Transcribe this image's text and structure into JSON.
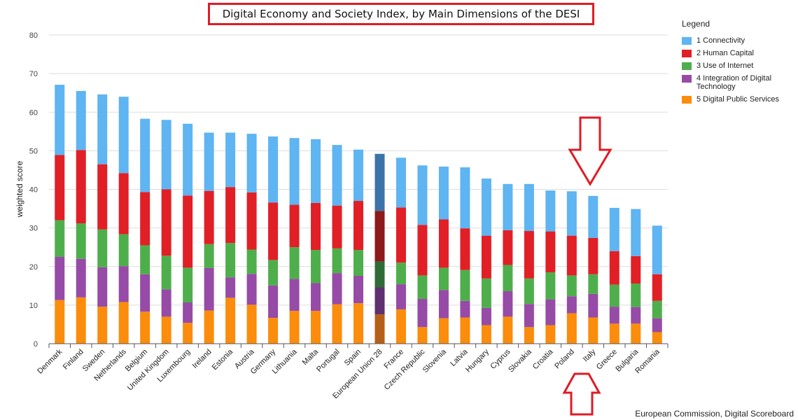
{
  "title": "Digital Economy and Society Index, by Main Dimensions of the DESI",
  "credit": "European Commission, Digital Scoreboard",
  "legend_title": "Legend",
  "colors": {
    "connectivity": "#5fb4f2",
    "human_capital": "#e11f26",
    "use_of_internet": "#4fae4c",
    "integration": "#964ba6",
    "public_services": "#fb8c0c",
    "highlight_bar": [
      "#3d74a8",
      "#8c1a1a",
      "#2f6b36",
      "#5e3070",
      "#b56018"
    ],
    "annotation": "#e01b24"
  },
  "annotation_icons": [
    "arrow-down-icon",
    "arrow-up-icon"
  ],
  "chart_data": {
    "type": "bar",
    "stacked": true,
    "ylabel": "weighted score",
    "xlabel": "",
    "ylim": [
      0,
      80
    ],
    "yticks": [
      0,
      10,
      20,
      30,
      40,
      50,
      60,
      70,
      80
    ],
    "grid": true,
    "legend_position": "right",
    "highlight_category": "European Union 28",
    "categories": [
      "Denmark",
      "Finland",
      "Sweden",
      "Netherlands",
      "Belgium",
      "United Kingdom",
      "Luxembourg",
      "Ireland",
      "Estonia",
      "Austria",
      "Germany",
      "Lithuania",
      "Malta",
      "Portugal",
      "Spain",
      "European Union 28",
      "France",
      "Czech Republic",
      "Slovenia",
      "Latvia",
      "Hungary",
      "Cyprus",
      "Slovakia",
      "Croatia",
      "Poland",
      "Italy",
      "Greece",
      "Bulgaria",
      "Romania"
    ],
    "series": [
      {
        "name": "5 Digital Public Services",
        "values": [
          11.3,
          12.0,
          9.6,
          10.8,
          8.3,
          7.0,
          5.4,
          8.6,
          11.9,
          10.1,
          6.7,
          8.5,
          8.5,
          10.2,
          10.5,
          7.6,
          8.9,
          4.3,
          6.6,
          6.8,
          4.8,
          7.0,
          4.3,
          4.8,
          7.9,
          6.8,
          5.2,
          5.2,
          3.0
        ]
      },
      {
        "name": "4 Integration of Digital Technology",
        "values": [
          11.2,
          10.0,
          10.2,
          9.3,
          9.7,
          7.1,
          5.3,
          11.0,
          5.3,
          8.0,
          8.4,
          8.3,
          7.2,
          8.1,
          7.1,
          7.0,
          6.5,
          7.3,
          7.3,
          4.3,
          4.5,
          6.6,
          6.0,
          6.7,
          4.4,
          6.1,
          4.4,
          4.3,
          3.6
        ]
      },
      {
        "name": "3 Use of Internet",
        "values": [
          9.5,
          9.2,
          9.8,
          8.3,
          7.5,
          8.7,
          9.0,
          6.2,
          8.9,
          6.3,
          6.6,
          8.2,
          8.6,
          6.4,
          6.7,
          6.7,
          5.6,
          6.1,
          5.8,
          8.0,
          7.6,
          6.8,
          6.6,
          7.0,
          5.4,
          5.1,
          5.7,
          6.1,
          4.5
        ]
      },
      {
        "name": "2 Human Capital",
        "values": [
          16.9,
          19.0,
          16.9,
          15.8,
          13.8,
          17.2,
          18.7,
          13.8,
          14.5,
          14.8,
          14.9,
          11.0,
          12.2,
          11.1,
          12.7,
          13.1,
          14.3,
          13.1,
          12.5,
          10.8,
          11.1,
          9.0,
          12.3,
          10.6,
          10.3,
          9.4,
          8.7,
          7.1,
          6.9
        ]
      },
      {
        "name": "1 Connectivity",
        "values": [
          18.2,
          15.3,
          18.1,
          19.8,
          19.0,
          18.0,
          18.6,
          15.1,
          14.1,
          15.2,
          17.1,
          17.3,
          16.5,
          15.7,
          13.3,
          14.8,
          12.9,
          15.4,
          13.7,
          15.8,
          14.8,
          12.0,
          12.2,
          10.6,
          11.5,
          10.9,
          11.2,
          12.2,
          12.6
        ]
      }
    ]
  }
}
